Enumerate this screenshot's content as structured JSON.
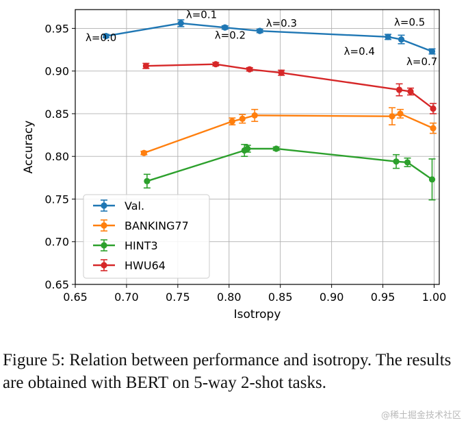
{
  "chart_data": {
    "type": "line",
    "title": "",
    "xlabel": "Isotropy",
    "ylabel": "Accuracy",
    "xlim": [
      0.65,
      1.005
    ],
    "ylim": [
      0.65,
      0.972
    ],
    "xticks": [
      0.65,
      0.7,
      0.75,
      0.8,
      0.85,
      0.9,
      0.95,
      1.0
    ],
    "xtick_labels": [
      "0.65",
      "0.70",
      "0.75",
      "0.80",
      "0.85",
      "0.90",
      "0.95",
      "1.00"
    ],
    "yticks": [
      0.65,
      0.7,
      0.75,
      0.8,
      0.85,
      0.9,
      0.95
    ],
    "ytick_labels": [
      "0.65",
      "0.70",
      "0.75",
      "0.80",
      "0.85",
      "0.90",
      "0.95"
    ],
    "grid": true,
    "legend_position": "lower-left",
    "series": [
      {
        "name": "Val.",
        "color": "#1f77b4",
        "x": [
          0.68,
          0.753,
          0.796,
          0.83,
          0.955,
          0.968,
          0.998
        ],
        "y": [
          0.941,
          0.956,
          0.951,
          0.947,
          0.94,
          0.937,
          0.923
        ],
        "err": [
          0.002,
          0.004,
          0.002,
          0.002,
          0.003,
          0.005,
          0.003
        ]
      },
      {
        "name": "BANKING77",
        "color": "#ff7f0e",
        "x": [
          0.717,
          0.803,
          0.813,
          0.825,
          0.959,
          0.967,
          0.999
        ],
        "y": [
          0.804,
          0.841,
          0.844,
          0.848,
          0.847,
          0.85,
          0.833
        ],
        "err": [
          0.002,
          0.004,
          0.005,
          0.007,
          0.01,
          0.005,
          0.006
        ]
      },
      {
        "name": "HINT3",
        "color": "#2ca02c",
        "x": [
          0.72,
          0.815,
          0.818,
          0.846,
          0.963,
          0.974,
          0.998
        ],
        "y": [
          0.771,
          0.807,
          0.809,
          0.809,
          0.794,
          0.793,
          0.773
        ],
        "err": [
          0.008,
          0.007,
          0.004,
          0.002,
          0.008,
          0.005,
          0.024
        ]
      },
      {
        "name": "HWU64",
        "color": "#d62728",
        "x": [
          0.719,
          0.787,
          0.82,
          0.851,
          0.966,
          0.977,
          0.999
        ],
        "y": [
          0.906,
          0.908,
          0.902,
          0.898,
          0.878,
          0.876,
          0.856
        ],
        "err": [
          0.003,
          0.002,
          0.002,
          0.003,
          0.007,
          0.004,
          0.006
        ]
      }
    ],
    "annotations": [
      {
        "text": "λ=0.0",
        "x": 0.66,
        "y": 0.935
      },
      {
        "text": "λ=0.1",
        "x": 0.758,
        "y": 0.962
      },
      {
        "text": "λ=0.2",
        "x": 0.786,
        "y": 0.938
      },
      {
        "text": "λ=0.3",
        "x": 0.836,
        "y": 0.952
      },
      {
        "text": "λ=0.4",
        "x": 0.912,
        "y": 0.919
      },
      {
        "text": "λ=0.5",
        "x": 0.961,
        "y": 0.953
      },
      {
        "text": "λ=0.7",
        "x": 0.973,
        "y": 0.907
      }
    ]
  },
  "caption": "Figure 5: Relation between performance and isotropy. The results are obtained with BERT on 5-way 2-shot tasks.",
  "watermark": "@稀土掘金技术社区"
}
